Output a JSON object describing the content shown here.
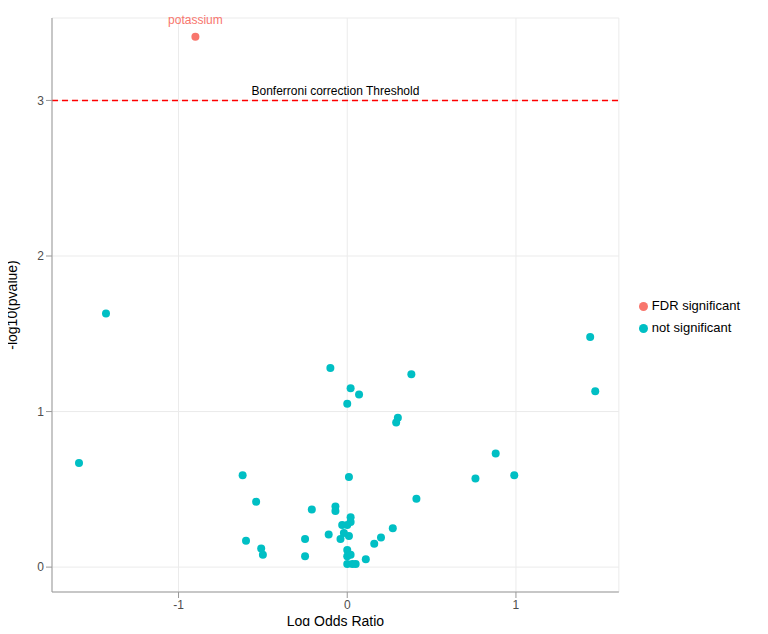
{
  "chart_data": {
    "type": "scatter",
    "x_label": "Log Odds Ratio",
    "y_label": "-log10(pvalue)",
    "xlim": [
      -1.75,
      1.61
    ],
    "ylim": [
      -0.16,
      3.53
    ],
    "xticks": [
      -1,
      0,
      1
    ],
    "yticks": [
      0,
      1,
      2,
      3
    ],
    "grid": true,
    "legend": "right",
    "reference_line": {
      "y": 3,
      "label": "Bonferroni correction Threshold",
      "color": "#ff0000",
      "line_style": "dashed"
    },
    "series": [
      {
        "name": "FDR significant",
        "color": "#F8766D",
        "x": [
          -0.9
        ],
        "values": [
          3.41
        ],
        "point_labels": [
          "potassium"
        ]
      },
      {
        "name": "not significant",
        "color": "#00BFC4",
        "x": [
          -1.59,
          -1.43,
          -0.62,
          -0.6,
          -0.54,
          -0.51,
          -0.5,
          -0.25,
          -0.25,
          -0.21,
          -0.11,
          -0.1,
          -0.07,
          -0.07,
          -0.04,
          -0.03,
          -0.02,
          0.0,
          0.0,
          0.0,
          0.0,
          0.01,
          0.0,
          0.01,
          0.02,
          0.02,
          0.02,
          0.02,
          0.03,
          0.05,
          0.07,
          0.11,
          0.16,
          0.2,
          0.27,
          0.29,
          0.3,
          0.38,
          0.41,
          0.76,
          0.88,
          0.99,
          1.44,
          1.47
        ],
        "values": [
          0.67,
          1.63,
          0.59,
          0.17,
          0.42,
          0.12,
          0.08,
          0.18,
          0.07,
          0.37,
          0.21,
          1.28,
          0.39,
          0.36,
          0.18,
          0.27,
          0.22,
          0.27,
          0.11,
          0.07,
          0.02,
          0.58,
          1.05,
          0.2,
          0.29,
          0.32,
          1.15,
          0.08,
          0.02,
          0.02,
          1.11,
          0.05,
          0.15,
          0.19,
          0.25,
          0.93,
          0.96,
          1.24,
          0.44,
          0.57,
          0.73,
          0.59,
          1.48,
          1.13
        ]
      }
    ]
  }
}
